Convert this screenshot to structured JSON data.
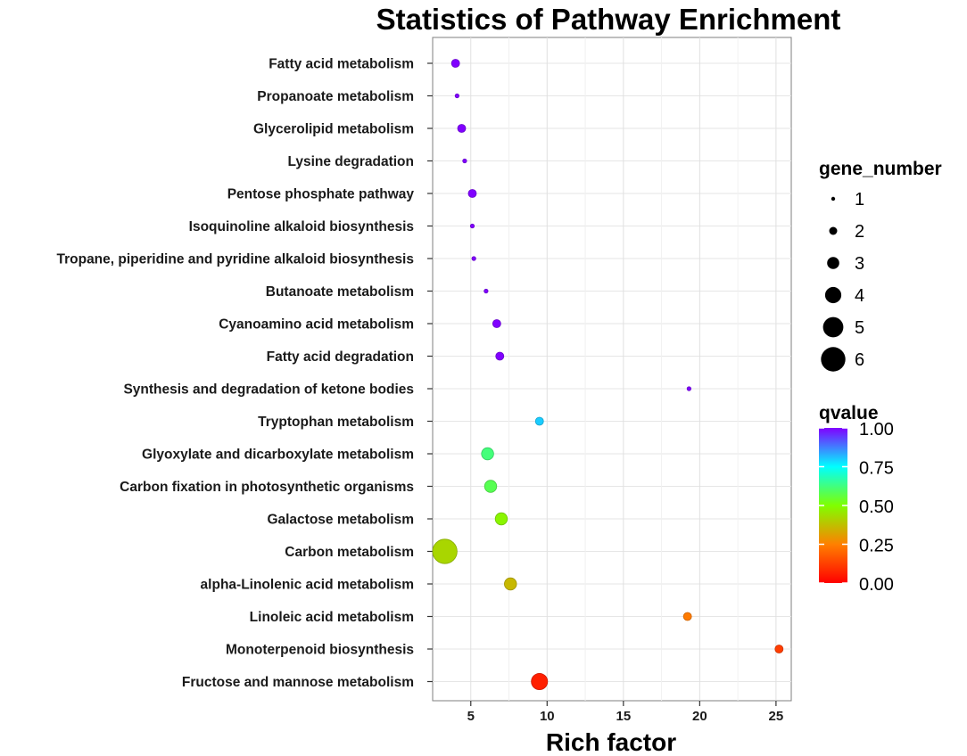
{
  "chart_data": {
    "type": "scatter",
    "title": "Statistics of Pathway Enrichment",
    "xlabel": "Rich factor",
    "ylabel": "",
    "xlim": [
      2.5,
      26
    ],
    "xticks": [
      5,
      10,
      15,
      20,
      25
    ],
    "grid": true,
    "points": [
      {
        "pathway": "Fatty acid metabolism",
        "rich_factor": 4.0,
        "gene_number": 2,
        "qvalue": 1.0
      },
      {
        "pathway": "Propanoate metabolism",
        "rich_factor": 4.1,
        "gene_number": 1,
        "qvalue": 1.0
      },
      {
        "pathway": "Glycerolipid metabolism",
        "rich_factor": 4.4,
        "gene_number": 2,
        "qvalue": 1.0
      },
      {
        "pathway": "Lysine degradation",
        "rich_factor": 4.6,
        "gene_number": 1,
        "qvalue": 1.0
      },
      {
        "pathway": "Pentose phosphate pathway",
        "rich_factor": 5.1,
        "gene_number": 2,
        "qvalue": 1.0
      },
      {
        "pathway": "Isoquinoline alkaloid biosynthesis",
        "rich_factor": 5.1,
        "gene_number": 1,
        "qvalue": 1.0
      },
      {
        "pathway": "Tropane, piperidine and pyridine alkaloid biosynthesis",
        "rich_factor": 5.2,
        "gene_number": 1,
        "qvalue": 1.0
      },
      {
        "pathway": "Butanoate metabolism",
        "rich_factor": 6.0,
        "gene_number": 1,
        "qvalue": 1.0
      },
      {
        "pathway": "Cyanoamino acid metabolism",
        "rich_factor": 6.7,
        "gene_number": 2,
        "qvalue": 1.0
      },
      {
        "pathway": "Fatty acid degradation",
        "rich_factor": 6.9,
        "gene_number": 2,
        "qvalue": 1.0
      },
      {
        "pathway": "Synthesis and degradation of ketone bodies",
        "rich_factor": 19.3,
        "gene_number": 1,
        "qvalue": 1.0
      },
      {
        "pathway": "Tryptophan metabolism",
        "rich_factor": 9.5,
        "gene_number": 2,
        "qvalue": 0.8
      },
      {
        "pathway": "Glyoxylate and dicarboxylate metabolism",
        "rich_factor": 6.1,
        "gene_number": 3,
        "qvalue": 0.62
      },
      {
        "pathway": "Carbon fixation in photosynthetic organisms",
        "rich_factor": 6.3,
        "gene_number": 3,
        "qvalue": 0.58
      },
      {
        "pathway": "Galactose metabolism",
        "rich_factor": 7.0,
        "gene_number": 3,
        "qvalue": 0.48
      },
      {
        "pathway": "Carbon metabolism",
        "rich_factor": 3.3,
        "gene_number": 6,
        "qvalue": 0.42
      },
      {
        "pathway": "alpha-Linolenic acid metabolism",
        "rich_factor": 7.6,
        "gene_number": 3,
        "qvalue": 0.36
      },
      {
        "pathway": "Linoleic acid metabolism",
        "rich_factor": 19.2,
        "gene_number": 2,
        "qvalue": 0.24
      },
      {
        "pathway": "Monoterpenoid biosynthesis",
        "rich_factor": 25.2,
        "gene_number": 2,
        "qvalue": 0.12
      },
      {
        "pathway": "Fructose and mannose metabolism",
        "rich_factor": 9.5,
        "gene_number": 4,
        "qvalue": 0.06
      }
    ],
    "size_legend": {
      "title": "gene_number",
      "values": [
        1,
        2,
        3,
        4,
        5,
        6
      ],
      "labels": [
        "1",
        "2",
        "3",
        "4",
        "5",
        "6"
      ]
    },
    "color_legend": {
      "title": "qvalue",
      "range": [
        0,
        1
      ],
      "ticks": [
        1.0,
        0.75,
        0.5,
        0.25,
        0.0
      ],
      "labels": [
        "1.00",
        "0.75",
        "0.50",
        "0.25",
        "0.00"
      ],
      "colors": [
        "#ff0000",
        "#ff8000",
        "#80ff00",
        "#00ffff",
        "#8000ff"
      ]
    }
  }
}
